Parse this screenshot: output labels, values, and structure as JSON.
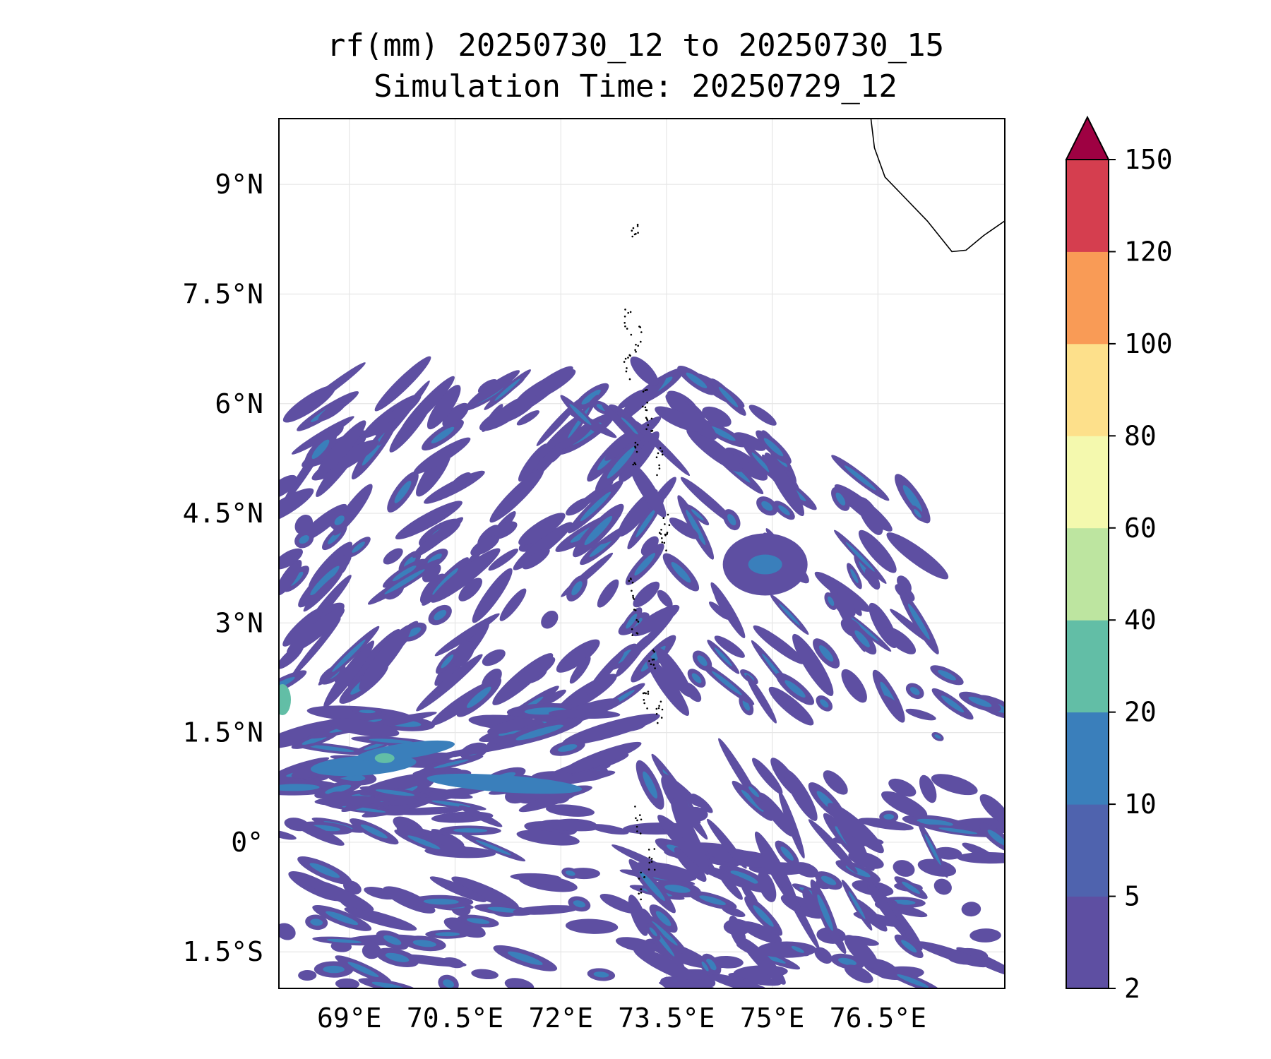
{
  "title": {
    "line1": "rf(mm) 20250730_12 to 20250730_15",
    "line2": "Simulation Time: 20250729_12"
  },
  "map": {
    "lon_range": [
      68.0,
      78.3
    ],
    "lat_range": [
      -2.0,
      9.9
    ],
    "lon_ticks": [
      {
        "value": 69.0,
        "label": "69°E"
      },
      {
        "value": 70.5,
        "label": "70.5°E"
      },
      {
        "value": 72.0,
        "label": "72°E"
      },
      {
        "value": 73.5,
        "label": "73.5°E"
      },
      {
        "value": 75.0,
        "label": "75°E"
      },
      {
        "value": 76.5,
        "label": "76.5°E"
      }
    ],
    "lat_ticks": [
      {
        "value": 9.0,
        "label": "9°N"
      },
      {
        "value": 7.5,
        "label": "7.5°N"
      },
      {
        "value": 6.0,
        "label": "6°N"
      },
      {
        "value": 4.5,
        "label": "4.5°N"
      },
      {
        "value": 3.0,
        "label": "3°N"
      },
      {
        "value": 1.5,
        "label": "1.5°N"
      },
      {
        "value": 0.0,
        "label": "0°"
      },
      {
        "value": -1.5,
        "label": "1.5°S"
      }
    ],
    "gridlines": true
  },
  "colorbar": {
    "levels": [
      {
        "label": "2",
        "color": "#5e4fa2"
      },
      {
        "label": "5",
        "color": "#4f63ae"
      },
      {
        "label": "10",
        "color": "#3a7fbb"
      },
      {
        "label": "20",
        "color": "#62bea6"
      },
      {
        "label": "40",
        "color": "#bde5a0"
      },
      {
        "label": "60",
        "color": "#f4f9ae"
      },
      {
        "label": "80",
        "color": "#fde08b"
      },
      {
        "label": "100",
        "color": "#f99b56"
      },
      {
        "label": "120",
        "color": "#d53e4f"
      },
      {
        "label": "150",
        "color": "#9e0142"
      }
    ],
    "extend": "max"
  },
  "colors": {
    "rain_light": "#5e4fa2",
    "rain_mid": "#3a7fbb",
    "rain_heavy": "#62bea6",
    "coast": "#000000"
  }
}
